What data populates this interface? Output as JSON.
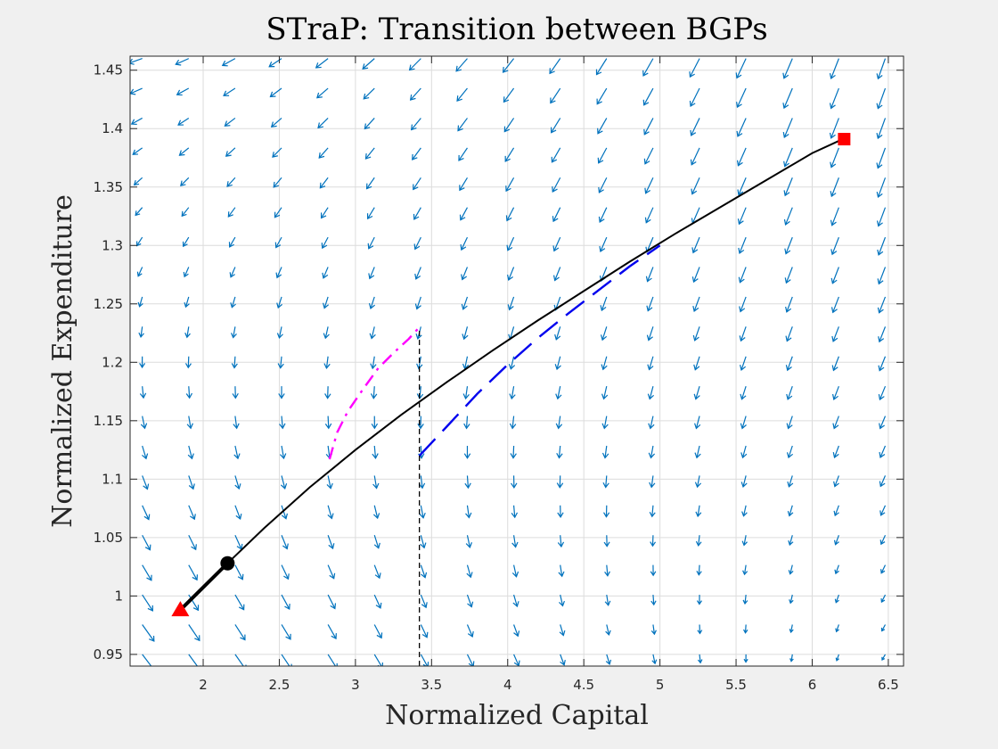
{
  "chart_data": {
    "type": "line",
    "title": "STraP: Transition between BGPs",
    "xlabel": "Normalized Capital",
    "ylabel": "Normalized Expenditure",
    "xlim": [
      1.52,
      6.6
    ],
    "ylim": [
      0.94,
      1.462
    ],
    "xticks": [
      "2",
      "2.5",
      "3",
      "3.5",
      "4",
      "4.5",
      "5",
      "5.5",
      "6",
      "6.5"
    ],
    "yticks": [
      "0.95",
      "1",
      "1.05",
      "1.1",
      "1.15",
      "1.2",
      "1.25",
      "1.3",
      "1.35",
      "1.4",
      "1.45"
    ],
    "grid": true,
    "legend": "none",
    "colors": {
      "quiver": "#0072BD",
      "saddle_path": "#000000",
      "dashed_blue": "#0000EE",
      "dashdot_magenta": "#FF00FF",
      "vertical_line": "#000000",
      "markers": "#FF0000"
    },
    "series": [
      {
        "style": "solid-black",
        "x": [
          1.85,
          2.0,
          2.16,
          2.4,
          2.7,
          3.0,
          3.3,
          3.6,
          3.9,
          4.2,
          4.5,
          4.8,
          5.1,
          5.4,
          5.7,
          6.0,
          6.2
        ],
        "y": [
          0.988,
          1.007,
          1.028,
          1.058,
          1.093,
          1.125,
          1.155,
          1.183,
          1.21,
          1.236,
          1.261,
          1.286,
          1.31,
          1.333,
          1.356,
          1.379,
          1.391
        ]
      },
      {
        "style": "dashed-blue",
        "x": [
          3.42,
          3.6,
          3.8,
          4.0,
          4.2,
          4.4,
          4.6,
          4.8,
          5.0
        ],
        "y": [
          1.12,
          1.145,
          1.173,
          1.198,
          1.221,
          1.242,
          1.262,
          1.282,
          1.3
        ]
      },
      {
        "style": "dashdot-magenta",
        "x": [
          2.83,
          2.88,
          2.95,
          3.05,
          3.15,
          3.25,
          3.35,
          3.42
        ],
        "y": [
          1.117,
          1.14,
          1.158,
          1.177,
          1.195,
          1.208,
          1.22,
          1.23
        ]
      },
      {
        "style": "vertical-dashed",
        "x": [
          3.42,
          3.42
        ],
        "y": [
          0.94,
          1.23
        ]
      }
    ],
    "markers": [
      {
        "shape": "triangle",
        "color": "#FF0000",
        "x": 1.85,
        "y": 0.988
      },
      {
        "shape": "square",
        "color": "#FF0000",
        "x": 6.21,
        "y": 1.391
      },
      {
        "shape": "circle",
        "color": "#000000",
        "x": 2.16,
        "y": 1.028
      }
    ]
  }
}
